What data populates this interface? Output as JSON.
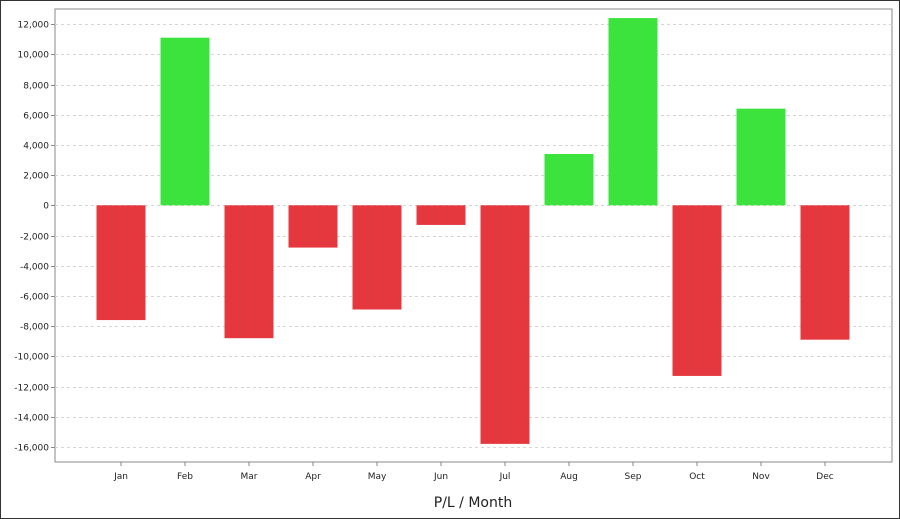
{
  "chart_data": {
    "type": "bar",
    "title": "",
    "xlabel": "P/L / Month",
    "ylabel": "",
    "categories": [
      "Jan",
      "Feb",
      "Mar",
      "Apr",
      "May",
      "Jun",
      "Jul",
      "Aug",
      "Sep",
      "Oct",
      "Nov",
      "Dec"
    ],
    "values": [
      -7600,
      11100,
      -8800,
      -2800,
      -6900,
      -1300,
      -15800,
      3400,
      12400,
      -11300,
      6400,
      -8900
    ],
    "ylim": [
      -17000,
      13000
    ],
    "yticks": [
      -16000,
      -14000,
      -12000,
      -10000,
      -8000,
      -6000,
      -4000,
      -2000,
      0,
      2000,
      4000,
      6000,
      8000,
      10000,
      12000
    ],
    "ytick_labels": [
      "-16,000",
      "-14,000",
      "-12,000",
      "-10,000",
      "-8,000",
      "-6,000",
      "-4,000",
      "-2,000",
      "0",
      "2,000",
      "4,000",
      "6,000",
      "8,000",
      "10,000",
      "12,000"
    ],
    "grid": true,
    "legend": "none",
    "colors": {
      "positive": "#3de33d",
      "negative": "#e5383e",
      "grid": "#d4d4d4",
      "axis": "#888888"
    }
  }
}
